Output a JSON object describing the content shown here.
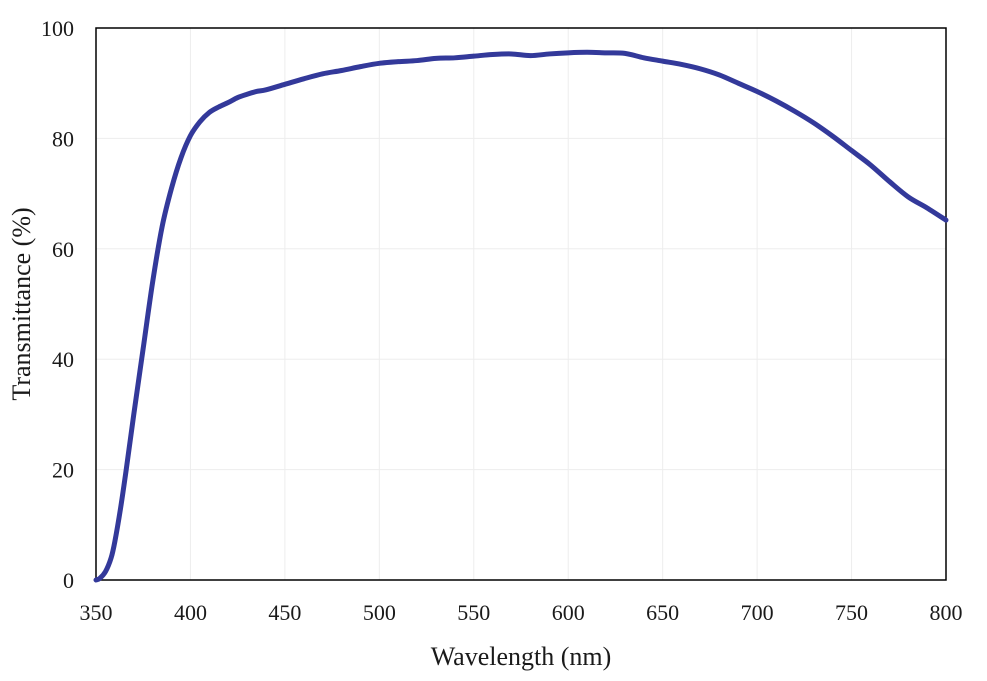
{
  "chart_data": {
    "type": "line",
    "title": "",
    "xlabel": "Wavelength (nm)",
    "ylabel": "Transmittance (%)",
    "xlim": [
      350,
      800
    ],
    "ylim": [
      0,
      100
    ],
    "xticks": [
      350,
      400,
      450,
      500,
      550,
      600,
      650,
      700,
      750,
      800
    ],
    "yticks": [
      0,
      20,
      40,
      60,
      80,
      100
    ],
    "grid": true,
    "legend": "none",
    "colors": {
      "series": "#33399a",
      "frame": "#000000",
      "grid": "#ededed"
    },
    "series": [
      {
        "x": [
          350,
          352,
          355,
          358,
          360,
          363,
          366,
          370,
          375,
          380,
          385,
          390,
          395,
          400,
          405,
          410,
          415,
          420,
          425,
          430,
          435,
          440,
          450,
          460,
          470,
          480,
          490,
          500,
          510,
          520,
          530,
          540,
          550,
          560,
          570,
          580,
          590,
          600,
          610,
          620,
          630,
          640,
          650,
          660,
          670,
          680,
          690,
          700,
          710,
          720,
          730,
          740,
          750,
          760,
          770,
          780,
          790,
          800
        ],
        "y": [
          0,
          0.3,
          1.5,
          4,
          7,
          13,
          20,
          30,
          42,
          54,
          64,
          71,
          76.5,
          80.5,
          83,
          84.7,
          85.7,
          86.5,
          87.4,
          88,
          88.5,
          88.8,
          89.8,
          90.8,
          91.7,
          92.3,
          93,
          93.6,
          93.9,
          94.1,
          94.5,
          94.6,
          94.9,
          95.2,
          95.3,
          95,
          95.3,
          95.5,
          95.6,
          95.5,
          95.4,
          94.6,
          94,
          93.4,
          92.6,
          91.5,
          90,
          88.5,
          86.8,
          84.9,
          82.8,
          80.4,
          77.8,
          75.2,
          72.2,
          69.4,
          67.4,
          65.2
        ]
      }
    ]
  }
}
